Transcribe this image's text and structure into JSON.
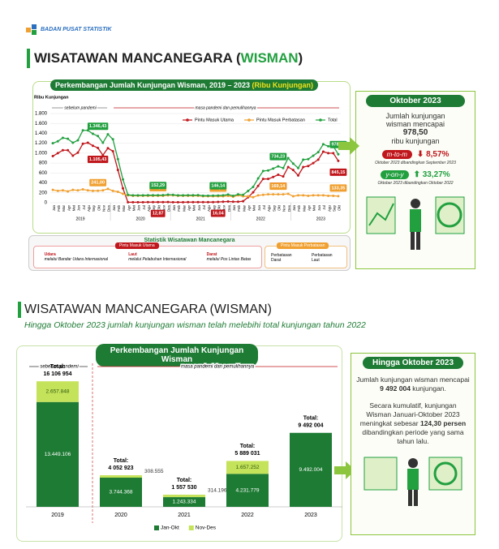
{
  "header": {
    "agency": "BADAN PUSAT STATISTIK"
  },
  "panel1": {
    "title": "WISATAWAN MANCANEGARA (",
    "title_highlight": "WISMAN",
    "title_end": ")",
    "sidebar": {
      "heading": "Oktober 2023",
      "text": "Jumlah kunjungan wisman mencapai",
      "value": "978,50",
      "unit": "ribu kunjungan",
      "mtm_label": "m-to-m",
      "mtm_value": "8,57%",
      "mtm_note": "Oktober 2023 dibandingkan September 2023",
      "yoy_label": "y-on-y",
      "yoy_value": "33,27%",
      "yoy_note": "Oktober 2023 dibandingkan Oktober 2022"
    },
    "stats": {
      "title": "Statistik Wisatawan Mancanegara",
      "main_title": "Pintu Masuk Utama",
      "main_items": [
        {
          "name": "Udara",
          "desc": "melalui Bandar Udara Internasional"
        },
        {
          "name": "Laut",
          "desc": "melalui Pelabuhan Internasional"
        },
        {
          "name": "Darat",
          "desc": "melalui Pos Lintas Batas"
        }
      ],
      "border_title": "Pintu Masuk Perbatasan",
      "border_items": [
        "Perbatasan Darat",
        "Perbatasan Laut"
      ]
    }
  },
  "panel2": {
    "title": "WISATAWAN MANCANEGARA (WISMAN)",
    "subtitle": "Hingga Oktober 2023 jumlah kunjungan wisman telah melebihi total kunjungan tahun 2022",
    "sidebar": {
      "heading": "Hingga Oktober 2023",
      "p1_start": "Jumlah kunjungan wisman mencapai ",
      "p1_value": "9 492 004",
      "p1_end": " kunjungan.",
      "p2_start": "Secara kumulatif, kunjungan Wisman Januari-Oktober 2023 meningkat sebesar ",
      "p2_value": "124,30 persen",
      "p2_end": " dibandingkan periode yang sama tahun lalu."
    }
  },
  "chart_data": [
    {
      "type": "line",
      "title": "Perkembangan Jumlah Kunjungan Wisman, 2019 – 2023",
      "title_highlight": "(Ribu Kunjungan)",
      "y_label": "Ribu Kunjungan",
      "annotations": [
        "sebelum pandemi",
        "masa pandemi dan pemulihannya"
      ],
      "categories": [
        "Jan",
        "Feb",
        "Mar",
        "Apr",
        "Mei",
        "Jun",
        "Jul",
        "Agu",
        "Sep",
        "Okt",
        "Nov",
        "Des",
        "Jan",
        "Feb",
        "Mar",
        "Apr",
        "Mei",
        "Jun",
        "Jul",
        "Agu",
        "Sep",
        "Okt",
        "Nov",
        "Des",
        "Jan",
        "Feb",
        "Mar",
        "Apr",
        "Mei",
        "Jun",
        "Jul",
        "Agu",
        "Sep",
        "Okt",
        "Nov",
        "Des",
        "Jan",
        "Feb",
        "Mar",
        "Apr",
        "Mei",
        "Jun",
        "Jul",
        "Agu",
        "Sep",
        "Okt",
        "Nov",
        "Des",
        "Jan",
        "Feb",
        "Mar",
        "Apr",
        "Mei",
        "Jun",
        "Jul",
        "Agu",
        "Sep",
        "Okt"
      ],
      "years": [
        "2019",
        "2020",
        "2021",
        "2022",
        "2023"
      ],
      "ylim": [
        0,
        1800
      ],
      "yticks": [
        0,
        200,
        400,
        600,
        800,
        {
          "value": 1000,
          "label": "1.000"
        },
        {
          "value": 1200,
          "label": "1.200"
        },
        {
          "value": 1400,
          "label": "1.400"
        },
        {
          "value": 1600,
          "label": "1.600"
        },
        {
          "value": 1800,
          "label": "1.800"
        }
      ],
      "grid": true,
      "series": [
        {
          "name": "Pintu Masuk Utama",
          "color": "#c0171c",
          "values": [
            940,
            1000,
            1060,
            1060,
            950,
            1010,
            1190,
            1210,
            1150,
            1105.43,
            960,
            1100,
            1040,
            660,
            290,
            10,
            10,
            10,
            10,
            12,
            12,
            12.87,
            13,
            14,
            10,
            10,
            10,
            12,
            12,
            13,
            12,
            12,
            13,
            16.04,
            20,
            25,
            20,
            20,
            30,
            110,
            210,
            340,
            480,
            480,
            520,
            565.08,
            530,
            720,
            660,
            550,
            720,
            740,
            800,
            870,
            1030,
            1000,
            1000,
            845.15
          ],
          "value_labels": [
            null,
            null,
            null,
            null,
            null,
            null,
            null,
            null,
            null,
            "1.105,43",
            null,
            null,
            null,
            null,
            null,
            null,
            null,
            null,
            null,
            null,
            null,
            "12,87",
            null,
            null,
            null,
            null,
            null,
            null,
            null,
            null,
            null,
            null,
            null,
            "16,04",
            null,
            null,
            null,
            null,
            null,
            null,
            null,
            null,
            null,
            null,
            null,
            "565,08",
            null,
            null,
            null,
            null,
            null,
            null,
            null,
            null,
            null,
            null,
            null,
            "845,15"
          ]
        },
        {
          "name": "Pintu Masuk Perbatasan",
          "color": "#f0a030",
          "values": [
            260,
            240,
            250,
            230,
            260,
            250,
            270,
            250,
            240,
            241,
            250,
            280,
            240,
            220,
            180,
            150,
            140,
            140,
            140,
            140,
            140,
            139.43,
            140,
            150,
            150,
            140,
            140,
            140,
            140,
            140,
            130,
            130,
            130,
            130.1,
            130,
            140,
            120,
            150,
            130,
            130,
            110,
            150,
            160,
            170,
            170,
            169.14,
            170,
            180,
            130,
            150,
            150,
            140,
            150,
            150,
            150,
            140,
            140,
            133.35
          ],
          "value_labels": [
            null,
            null,
            null,
            null,
            null,
            null,
            null,
            null,
            null,
            "241,00",
            null,
            null,
            null,
            null,
            null,
            null,
            null,
            null,
            null,
            null,
            null,
            "139,43",
            null,
            null,
            null,
            null,
            null,
            null,
            null,
            null,
            null,
            null,
            null,
            "130,10",
            null,
            null,
            null,
            null,
            null,
            null,
            null,
            null,
            null,
            null,
            null,
            "169,14",
            null,
            null,
            null,
            null,
            null,
            null,
            null,
            null,
            null,
            null,
            null,
            "133,35"
          ]
        },
        {
          "name": "Total",
          "color": "#22a040",
          "values": [
            1200,
            1240,
            1310,
            1290,
            1210,
            1260,
            1460,
            1460,
            1390,
            1346.43,
            1210,
            1380,
            1280,
            880,
            470,
            160,
            150,
            150,
            150,
            152,
            152,
            152.29,
            153,
            164,
            160,
            150,
            150,
            152,
            152,
            153,
            142,
            142,
            143,
            146.14,
            150,
            165,
            140,
            170,
            160,
            240,
            320,
            490,
            640,
            650,
            690,
            734.23,
            700,
            900,
            790,
            700,
            870,
            880,
            950,
            1020,
            1180,
            1140,
            1140,
            978.5
          ],
          "value_labels": [
            null,
            null,
            null,
            null,
            null,
            null,
            null,
            null,
            null,
            "1.346,43",
            null,
            null,
            null,
            null,
            null,
            null,
            null,
            null,
            null,
            null,
            null,
            "152,29",
            null,
            null,
            null,
            null,
            null,
            null,
            null,
            null,
            null,
            null,
            null,
            "146,14",
            null,
            null,
            null,
            null,
            null,
            null,
            null,
            null,
            null,
            null,
            null,
            "734,23",
            null,
            null,
            null,
            null,
            null,
            null,
            null,
            null,
            null,
            null,
            null,
            "978,50"
          ]
        }
      ]
    },
    {
      "type": "stacked_bar",
      "title": "Perkembangan Jumlah Kunjungan Wisman",
      "annotations": [
        "sebelum pandemi",
        "masa pandemi dan pemulihannya"
      ],
      "categories": [
        "2019",
        "2020",
        "2021",
        "2022",
        "2023"
      ],
      "ylim": [
        0,
        18000000
      ],
      "series": [
        {
          "name": "Jan-Okt",
          "color": "#1e7b34",
          "values": [
            13449106,
            3744368,
            1243334,
            4231779,
            9492004
          ],
          "value_labels": [
            "13.449.106",
            "3.744.368",
            "1.243.334",
            "4.231.779",
            "9.492.004"
          ]
        },
        {
          "name": "Nov-Des",
          "color": "#c5e35a",
          "values": [
            2657848,
            308555,
            314196,
            1657252,
            null
          ],
          "value_labels": [
            "2.657.848",
            "308.555",
            "314.196",
            "1.657.252",
            null
          ]
        }
      ],
      "total_prefix": "Total:",
      "totals": [
        16106954,
        4052923,
        1557530,
        5889031,
        9492004
      ],
      "total_labels": [
        "16 106 954",
        "4 052 923",
        "1 557 530",
        "5 889 031",
        "9 492 004"
      ]
    }
  ]
}
